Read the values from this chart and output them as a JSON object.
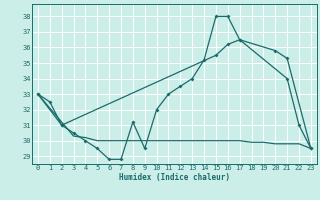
{
  "xlabel": "Humidex (Indice chaleur)",
  "bg_color": "#cceee8",
  "line_color": "#1a6b6b",
  "grid_color": "#ffffff",
  "xlim": [
    -0.5,
    23.5
  ],
  "ylim": [
    28.5,
    38.8
  ],
  "yticks": [
    29,
    30,
    31,
    32,
    33,
    34,
    35,
    36,
    37,
    38
  ],
  "xticks": [
    0,
    1,
    2,
    3,
    4,
    5,
    6,
    7,
    8,
    9,
    10,
    11,
    12,
    13,
    14,
    15,
    16,
    17,
    18,
    19,
    20,
    21,
    22,
    23
  ],
  "line1_x": [
    0,
    1,
    2,
    3,
    4,
    5,
    6,
    7,
    8,
    9,
    10,
    11,
    12,
    13,
    14,
    15,
    16,
    17,
    21,
    22,
    23
  ],
  "line1_y": [
    33.0,
    32.5,
    31.0,
    30.5,
    30.0,
    29.5,
    28.8,
    28.8,
    31.2,
    29.5,
    32.0,
    33.0,
    33.5,
    34.0,
    35.2,
    38.0,
    38.0,
    36.5,
    34.0,
    31.0,
    29.5
  ],
  "line2_x": [
    0,
    2,
    15,
    16,
    17,
    20,
    21,
    23
  ],
  "line2_y": [
    33.0,
    31.0,
    35.5,
    36.2,
    36.5,
    35.8,
    35.3,
    29.5
  ],
  "line3_x": [
    0,
    3,
    4,
    5,
    9,
    10,
    11,
    12,
    13,
    14,
    15,
    16,
    17,
    18,
    19,
    20,
    21,
    22,
    23
  ],
  "line3_y": [
    33.0,
    30.3,
    30.2,
    30.0,
    30.0,
    30.0,
    30.0,
    30.0,
    30.0,
    30.0,
    30.0,
    30.0,
    30.0,
    29.9,
    29.9,
    29.8,
    29.8,
    29.8,
    29.5
  ]
}
